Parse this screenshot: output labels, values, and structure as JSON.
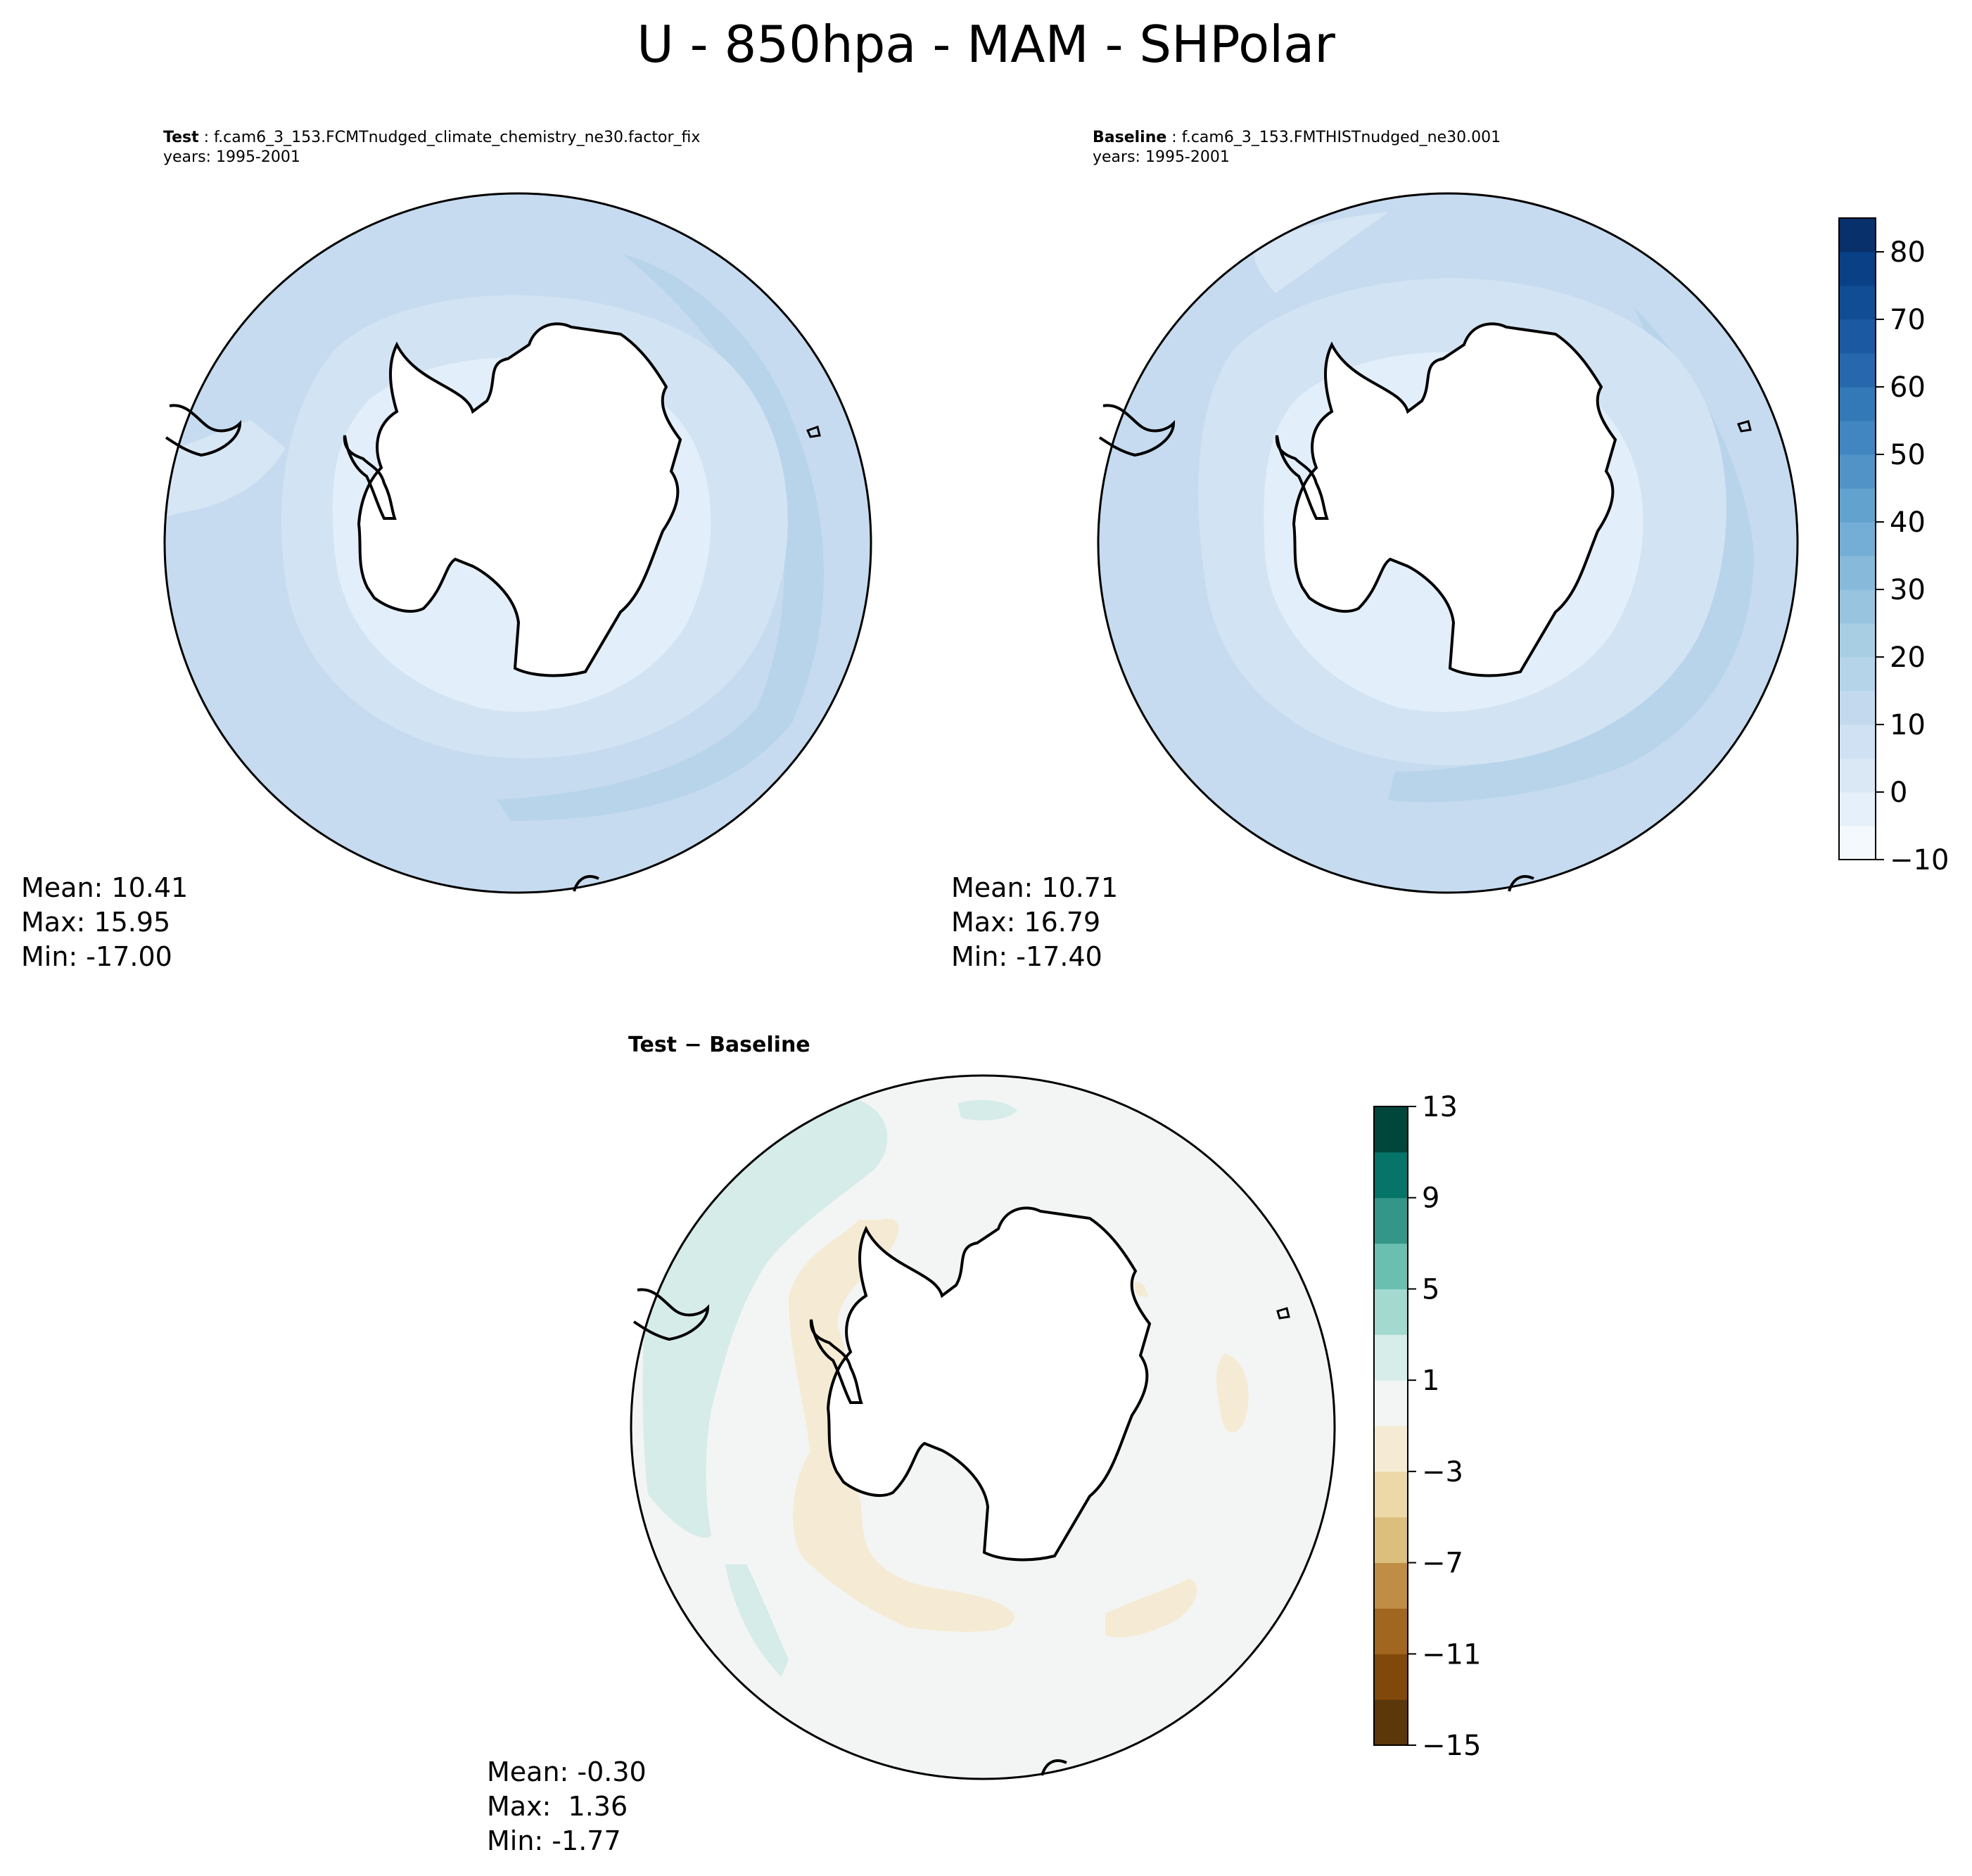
{
  "figure": {
    "title": "U - 850hpa - MAM - SHPolar"
  },
  "panels": {
    "test": {
      "label": "Test",
      "case": "f.cam6_3_153.FCMTnudged_climate_chemistry_ne30.factor_fix",
      "years": "years: 1995-2001",
      "mean": "Mean: 10.41",
      "max": "Max: 15.95",
      "min": "Min: -17.00"
    },
    "baseline": {
      "label": "Baseline",
      "case": "f.cam6_3_153.FMTHISTnudged_ne30.001",
      "years": "years: 1995-2001",
      "mean": "Mean: 10.71",
      "max": "Max: 16.79",
      "min": "Min: -17.40"
    },
    "diff": {
      "label_test": "Test",
      "label_sep": " − ",
      "label_baseline": "Baseline",
      "mean": "Mean: -0.30",
      "max": "Max:  1.36",
      "min": "Min: -1.77"
    }
  },
  "chart_data": [
    {
      "type": "heatmap",
      "name": "test",
      "projection": "south-polar-stereographic",
      "mean": 10.41,
      "max": 15.95,
      "min": -17.0,
      "colormap": "Blues"
    },
    {
      "type": "heatmap",
      "name": "baseline",
      "projection": "south-polar-stereographic",
      "mean": 10.71,
      "max": 16.79,
      "min": -17.4,
      "colormap": "Blues"
    },
    {
      "type": "heatmap",
      "name": "test-minus-baseline",
      "projection": "south-polar-stereographic",
      "mean": -0.3,
      "max": 1.36,
      "min": -1.77,
      "colormap": "BrBG"
    }
  ],
  "colorbars": {
    "main": {
      "levels": [
        -10,
        -5,
        0,
        5,
        10,
        15,
        20,
        25,
        30,
        35,
        40,
        45,
        50,
        55,
        60,
        65,
        70,
        75,
        80,
        85
      ],
      "ticks": [
        -10,
        0,
        10,
        20,
        30,
        40,
        50,
        60,
        70,
        80
      ],
      "tick_labels": [
        "−10",
        "0",
        "10",
        "20",
        "30",
        "40",
        "50",
        "60",
        "70",
        "80"
      ],
      "colors": [
        "#f4f9fe",
        "#e6f0fa",
        "#dae8f6",
        "#cfe1f2",
        "#c3daee",
        "#b6d4e9",
        "#a8cee4",
        "#98c4df",
        "#87bada",
        "#74add5",
        "#62a2cf",
        "#5193c7",
        "#4186c0",
        "#3379b8",
        "#2667ad",
        "#1b5aa2",
        "#114d94",
        "#0a4085",
        "#08306b"
      ]
    },
    "diff": {
      "levels": [
        -15,
        -13,
        -11,
        -9,
        -7,
        -5,
        -3,
        -1,
        1,
        3,
        5,
        7,
        9,
        11,
        13
      ],
      "ticks": [
        -15,
        -11,
        -7,
        -3,
        1,
        5,
        9,
        13
      ],
      "tick_labels": [
        "−15",
        "−11",
        "−7",
        "−3",
        "1",
        "5",
        "9",
        "13"
      ],
      "colors": [
        "#5c3709",
        "#80490b",
        "#a1661f",
        "#c08d46",
        "#dcbe7d",
        "#edd9a7",
        "#f5ebd4",
        "#f3f5f4",
        "#d6ede9",
        "#a3d9cf",
        "#6bbfb1",
        "#349589",
        "#067468",
        "#00463b"
      ]
    }
  }
}
